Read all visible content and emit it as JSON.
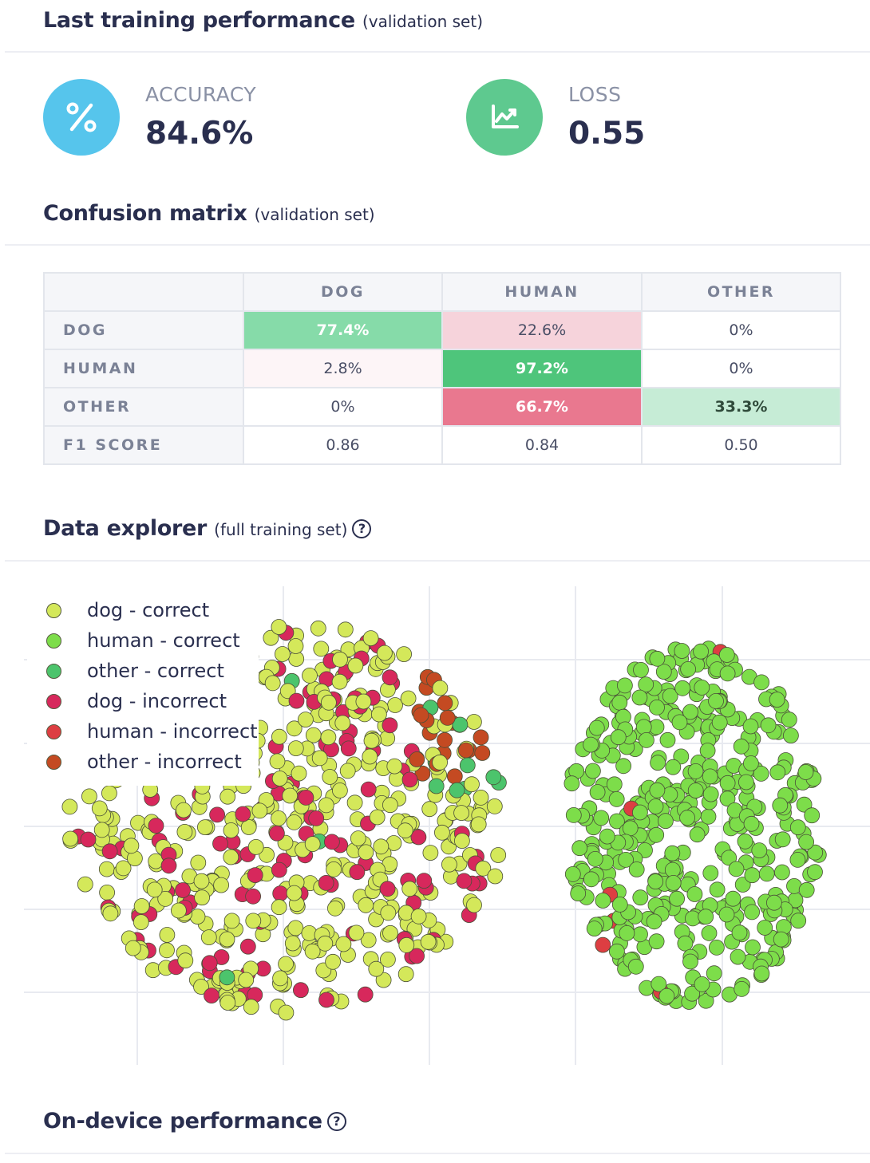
{
  "sections": {
    "performance": {
      "title": "Last training performance",
      "subtitle": "(validation set)"
    },
    "confusion": {
      "title": "Confusion matrix",
      "subtitle": "(validation set)"
    },
    "explorer": {
      "title": "Data explorer",
      "subtitle": "(full training set)",
      "help_icon": "?"
    },
    "device": {
      "title": "On-device performance",
      "help_icon": "?"
    }
  },
  "metrics": {
    "accuracy": {
      "label": "ACCURACY",
      "value": "84.6%",
      "icon": "percent-icon",
      "color": "#56c5ec"
    },
    "loss": {
      "label": "LOSS",
      "value": "0.55",
      "icon": "trending-chart-icon",
      "color": "#5ec98f"
    }
  },
  "confusion_matrix": {
    "columns": [
      "DOG",
      "HUMAN",
      "OTHER"
    ],
    "rows": [
      {
        "label": "DOG",
        "cells": [
          "77.4%",
          "22.6%",
          "0%"
        ]
      },
      {
        "label": "HUMAN",
        "cells": [
          "2.8%",
          "97.2%",
          "0%"
        ]
      },
      {
        "label": "OTHER",
        "cells": [
          "0%",
          "66.7%",
          "33.3%"
        ]
      }
    ],
    "f1": {
      "label": "F1 SCORE",
      "cells": [
        "0.86",
        "0.84",
        "0.50"
      ]
    },
    "cell_colors": [
      [
        "#86dba9",
        "#f6d3db",
        "#ffffff"
      ],
      [
        "#fdf5f7",
        "#4ec57b",
        "#ffffff"
      ],
      [
        "#ffffff",
        "#e9788f",
        "#c6ecd6"
      ]
    ]
  },
  "legend": {
    "items": [
      {
        "label": "dog - correct",
        "color": "#d4e85a"
      },
      {
        "label": "human - correct",
        "color": "#7ddd4a"
      },
      {
        "label": "other - correct",
        "color": "#4cc46c"
      },
      {
        "label": "dog - incorrect",
        "color": "#d7285c"
      },
      {
        "label": "human - incorrect",
        "color": "#dd3e42"
      },
      {
        "label": "other - incorrect",
        "color": "#c44a22"
      }
    ]
  }
}
